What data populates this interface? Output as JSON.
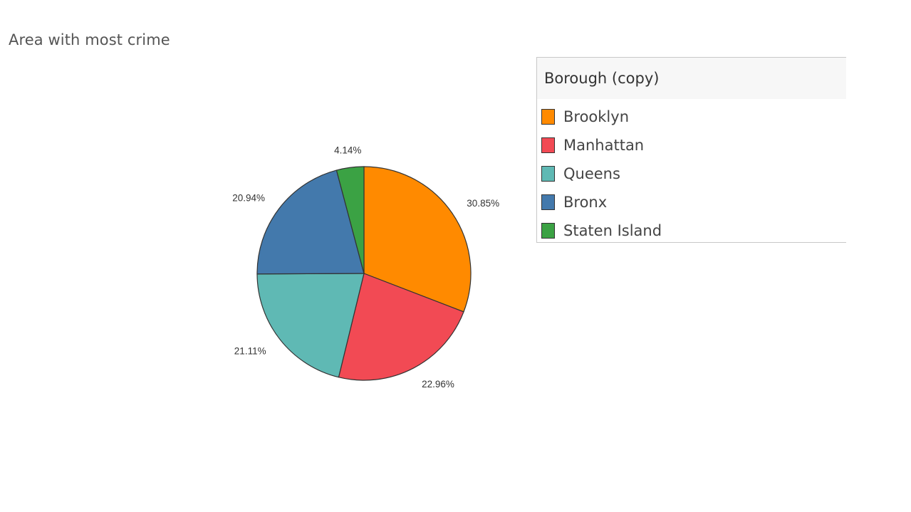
{
  "page": {
    "title": "Area with most crime"
  },
  "legend": {
    "title": "Borough (copy)",
    "items": [
      {
        "label": "Brooklyn",
        "color": "#FF8A00"
      },
      {
        "label": "Manhattan",
        "color": "#F24A54"
      },
      {
        "label": "Queens",
        "color": "#5FB9B4"
      },
      {
        "label": "Bronx",
        "color": "#4379AC"
      },
      {
        "label": "Staten Island",
        "color": "#3BA244"
      }
    ]
  },
  "chart_data": {
    "type": "pie",
    "title": "Area with most crime",
    "categories": [
      "Brooklyn",
      "Manhattan",
      "Queens",
      "Bronx",
      "Staten Island"
    ],
    "values": [
      30.85,
      22.96,
      21.11,
      20.94,
      4.14
    ],
    "labels": [
      "30.85%",
      "22.96%",
      "21.11%",
      "20.94%",
      "4.14%"
    ],
    "colors": [
      "#FF8A00",
      "#F24A54",
      "#5FB9B4",
      "#4379AC",
      "#3BA244"
    ],
    "legend_placement": "right"
  }
}
